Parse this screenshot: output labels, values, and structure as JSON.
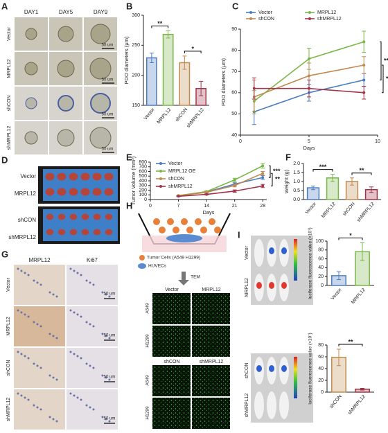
{
  "panel_a": {
    "label": "A",
    "columns": [
      "DAY1",
      "DAY5",
      "DAY9"
    ],
    "rows": [
      "Vector",
      "MRPL12",
      "shCON",
      "shMRPL12"
    ],
    "scale_bar": "50 um"
  },
  "panel_d": {
    "label": "D",
    "rows": [
      "Vector",
      "MRPL12",
      "shCON",
      "shMRPL12"
    ]
  },
  "panel_g": {
    "label": "G",
    "columns": [
      "MRPL12",
      "Ki67"
    ],
    "rows": [
      "Vector",
      "MRPL12",
      "shCON",
      "shMRPL12"
    ],
    "scale_bar": "50 um"
  },
  "panel_h": {
    "label": "H",
    "legend": [
      "Tumor Cells (A549 H1299)",
      "HUVECs"
    ],
    "arrow": "TEM",
    "groups": [
      {
        "columns": [
          "Vector",
          "MRPL12"
        ],
        "rows": [
          "A549",
          "H1299"
        ]
      },
      {
        "columns": [
          "shCON",
          "shMRPL12"
        ],
        "rows": [
          "A549",
          "H1299"
        ]
      }
    ],
    "scale_bar": "275 μm"
  },
  "panel_i": {
    "label": "I",
    "groups": [
      {
        "rows": [
          "Vector",
          "MRPL12"
        ]
      },
      {
        "rows": [
          "shCON",
          "shMRPL12"
        ]
      }
    ]
  },
  "chart_data": [
    {
      "type": "bar",
      "label": "B",
      "ylabel": "PDO diameters (μm)",
      "categories": [
        "Vector",
        "MRPL12",
        "shCON",
        "shMRPL12"
      ],
      "colors": [
        "#4a7cbf",
        "#7ab648",
        "#c08a50",
        "#a0354a"
      ],
      "values": [
        229,
        268,
        221,
        178
      ],
      "errors": [
        8,
        6,
        11,
        12
      ],
      "ylim": [
        150,
        300
      ],
      "yticks": [
        150,
        200,
        250,
        300
      ],
      "significance": [
        "**",
        "*"
      ]
    },
    {
      "type": "line",
      "label": "C",
      "xlabel": "Days",
      "ylabel": "PDO diameters (μm)",
      "x": [
        1,
        5,
        9
      ],
      "xlim": [
        0,
        10
      ],
      "xticks": [
        0,
        5,
        10
      ],
      "ylim": [
        40,
        90
      ],
      "yticks": [
        40,
        50,
        60,
        70,
        80,
        90
      ],
      "legend": "top",
      "series": [
        {
          "name": "Vector",
          "color": "#4a7cbf",
          "values": [
            51,
            60,
            66
          ],
          "errors": [
            6,
            4,
            3
          ]
        },
        {
          "name": "MRPL12",
          "color": "#7ab648",
          "values": [
            56,
            76,
            84
          ],
          "errors": [
            5,
            5,
            5
          ]
        },
        {
          "name": "shCON",
          "color": "#c08a50",
          "values": [
            58,
            68,
            73
          ],
          "errors": [
            8,
            6,
            4
          ]
        },
        {
          "name": "shMRPL12",
          "color": "#a0354a",
          "values": [
            62,
            62,
            60
          ],
          "errors": [
            5,
            4,
            3
          ]
        }
      ],
      "significance": [
        "**",
        "*"
      ]
    },
    {
      "type": "line",
      "label": "E",
      "xlabel": "Days",
      "ylabel": "Tumor Volume (mm³)",
      "x": [
        7,
        14,
        21,
        28
      ],
      "xlim": [
        0,
        29
      ],
      "xticks": [
        0,
        7,
        14,
        21,
        28
      ],
      "ylim": [
        0,
        800
      ],
      "yticks": [
        0,
        100,
        200,
        300,
        400,
        500,
        600,
        700,
        800
      ],
      "legend": "upper left",
      "series": [
        {
          "name": "Vector",
          "color": "#4a7cbf",
          "values": [
            80,
            160,
            330,
            470
          ],
          "errors": [
            8,
            15,
            30,
            40
          ]
        },
        {
          "name": "MRPL12 OE",
          "color": "#7ab648",
          "values": [
            85,
            170,
            420,
            720
          ],
          "errors": [
            8,
            15,
            35,
            50
          ]
        },
        {
          "name": "shCON",
          "color": "#c08a50",
          "values": [
            80,
            155,
            300,
            560
          ],
          "errors": [
            8,
            15,
            30,
            40
          ]
        },
        {
          "name": "shMRPL12",
          "color": "#a0354a",
          "values": [
            70,
            110,
            180,
            290
          ],
          "errors": [
            8,
            12,
            25,
            35
          ]
        }
      ],
      "significance": [
        "***",
        "**"
      ]
    },
    {
      "type": "bar",
      "label": "F",
      "ylabel": "Weight (g)",
      "categories": [
        "Vector",
        "MRPL12",
        "shCON",
        "shMRPL12"
      ],
      "colors": [
        "#4a7cbf",
        "#7ab648",
        "#c08a50",
        "#a0354a"
      ],
      "values": [
        0.65,
        1.2,
        1.0,
        0.55
      ],
      "errors": [
        0.1,
        0.2,
        0.2,
        0.15
      ],
      "ylim": [
        0,
        2
      ],
      "yticks": [
        {
          "value": 0,
          "label": "0.0"
        },
        {
          "value": 0.5,
          "label": "0.5"
        },
        {
          "value": 1,
          "label": "1.0"
        },
        {
          "value": 1.5,
          "label": "1.5"
        },
        {
          "value": 2,
          "label": "2.0"
        }
      ],
      "significance": [
        "***",
        "**"
      ]
    },
    {
      "type": "bar",
      "ylabel": "luciferase fluorescence value (×10⁷)",
      "categories": [
        "Vector",
        "MRPL12"
      ],
      "colors": [
        "#4a7cbf",
        "#7ab648"
      ],
      "values": [
        22,
        76
      ],
      "errors": [
        9,
        20
      ],
      "ylim": [
        0,
        100
      ],
      "yticks": [
        0,
        20,
        40,
        60,
        80,
        100
      ],
      "significance": [
        "*"
      ]
    },
    {
      "type": "bar",
      "ylabel": "luciferase fluorescence value (×10⁷)",
      "categories": [
        "shCON",
        "shMRPL12"
      ],
      "colors": [
        "#c08a50",
        "#a0354a"
      ],
      "values": [
        59,
        5
      ],
      "errors": [
        14,
        1.5
      ],
      "ylim": [
        0,
        80
      ],
      "yticks": [
        0,
        20,
        40,
        60,
        80
      ],
      "significance": [
        "**"
      ]
    }
  ]
}
